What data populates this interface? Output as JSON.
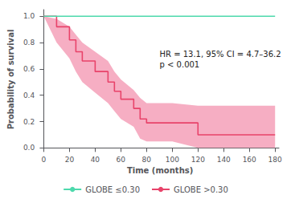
{
  "chart_data": {
    "type": "line",
    "xlabel": "Time (months)",
    "ylabel": "Probability of survival",
    "xlim": [
      -2,
      183
    ],
    "ylim": [
      -0.01,
      1.05
    ],
    "xticks": [
      0,
      20,
      40,
      60,
      80,
      100,
      120,
      140,
      160,
      180
    ],
    "yticks": [
      {
        "value": 0.0,
        "label": "0.0"
      },
      0.2,
      0.4,
      0.6,
      0.8,
      {
        "value": 1.0,
        "label": "1.0"
      }
    ],
    "annotation": "HR = 13.1, 95% CI = 4.7–36.2\np < 0.001",
    "grid": false,
    "legend": "bottom",
    "series": [
      {
        "name": "GLOBE ≤0.30",
        "color": "#4dd9ac",
        "x": [
          0,
          180
        ],
        "values": [
          1.0,
          1.0
        ]
      },
      {
        "name": "GLOBE >0.30",
        "color": "#e8436a",
        "x": [
          0,
          10,
          10,
          20,
          20,
          25,
          25,
          30,
          30,
          40,
          40,
          50,
          50,
          55,
          55,
          60,
          60,
          70,
          70,
          75,
          75,
          80,
          80,
          90,
          90,
          100,
          100,
          120,
          120,
          125,
          125,
          180
        ],
        "values": [
          1.0,
          1.0,
          0.92,
          0.92,
          0.82,
          0.82,
          0.73,
          0.73,
          0.66,
          0.66,
          0.58,
          0.58,
          0.5,
          0.5,
          0.43,
          0.43,
          0.37,
          0.37,
          0.3,
          0.3,
          0.22,
          0.22,
          0.19,
          0.19,
          0.19,
          0.19,
          0.19,
          0.19,
          0.1,
          0.1,
          0.1,
          0.1
        ],
        "ci_color": "#f4a0b8",
        "ci_x": [
          0,
          10,
          20,
          25,
          30,
          40,
          50,
          55,
          60,
          70,
          75,
          80,
          90,
          100,
          120,
          125,
          180
        ],
        "ci_lower": [
          1.0,
          0.8,
          0.68,
          0.58,
          0.5,
          0.42,
          0.34,
          0.28,
          0.22,
          0.16,
          0.07,
          0.05,
          0.05,
          0.05,
          0.0,
          0.0,
          0.0
        ],
        "ci_upper": [
          1.0,
          0.98,
          0.92,
          0.86,
          0.8,
          0.73,
          0.66,
          0.58,
          0.52,
          0.44,
          0.38,
          0.34,
          0.34,
          0.34,
          0.32,
          0.32,
          0.32
        ]
      }
    ]
  }
}
